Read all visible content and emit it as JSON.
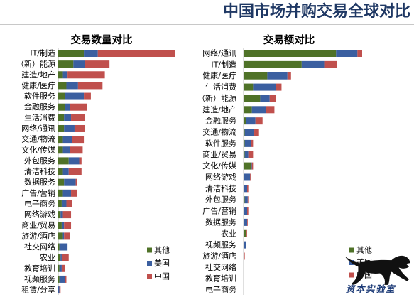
{
  "header": {
    "title": "中国市场并购交易全球对比"
  },
  "chart_data": [
    {
      "type": "bar",
      "orientation": "horizontal",
      "stacked": true,
      "title": "交易数量对比",
      "categories": [
        "IT/制造",
        "（新）能源",
        "建造/地产",
        "健康/医疗",
        "软件服务",
        "金融服务",
        "生活消费",
        "网络/通讯",
        "交通/物流",
        "文化/传媒",
        "外包服务",
        "清洁科技",
        "数据服务",
        "广告/营销",
        "电子商务",
        "网络游戏",
        "商业/贸易",
        "旅游/酒店",
        "社交网络",
        "农业",
        "教育培训",
        "视频服务",
        "租赁/分享"
      ],
      "series": [
        {
          "name": "其他",
          "color": "#4f7228",
          "values": [
            22,
            13,
            4,
            7,
            6,
            6,
            5,
            5,
            4,
            4,
            9,
            4,
            5,
            4,
            3,
            2,
            3,
            4,
            1,
            2,
            1,
            1,
            0
          ]
        },
        {
          "name": "美国",
          "color": "#3b5fa0",
          "values": [
            12,
            10,
            4,
            10,
            16,
            4,
            6,
            9,
            8,
            6,
            9,
            5,
            10,
            7,
            4,
            2,
            2,
            1,
            7,
            1,
            2,
            5,
            1
          ]
        },
        {
          "name": "中国",
          "color": "#c0504d",
          "values": [
            66,
            21,
            32,
            21,
            6,
            15,
            12,
            9,
            10,
            11,
            2,
            11,
            1,
            5,
            5,
            7,
            6,
            5,
            0,
            6,
            3,
            1,
            1
          ]
        }
      ],
      "legend": "bottom-right",
      "grid": false
    },
    {
      "type": "bar",
      "orientation": "horizontal",
      "stacked": true,
      "title": "交易额对比",
      "categories": [
        "网络/通讯",
        "IT/制造",
        "健康/医疗",
        "生活消费",
        "（新）能源",
        "建造/地产",
        "金融服务",
        "交通/物流",
        "软件服务",
        "商业/贸易",
        "文化/传媒",
        "网络游戏",
        "清洁科技",
        "外包服务",
        "广告/营销",
        "数据服务",
        "农业",
        "视频服务",
        "旅游/酒店",
        "社交网络",
        "教育培训",
        "电子商务"
      ],
      "series": [
        {
          "name": "其他",
          "color": "#4f7228",
          "values": [
            78,
            49,
            20,
            8,
            14,
            7,
            2,
            1,
            1,
            1,
            6,
            0.5,
            0.5,
            1,
            0.5,
            0.5,
            2.5,
            0,
            0,
            0,
            0,
            0
          ]
        },
        {
          "name": "美国",
          "color": "#3b5fa0",
          "values": [
            18,
            19,
            17,
            19,
            8,
            12,
            8,
            8,
            5,
            3,
            1,
            5,
            2.5,
            2.5,
            2.5,
            2.5,
            0,
            2,
            0.5,
            0.5,
            0,
            0.5
          ]
        },
        {
          "name": "中国",
          "color": "#c0504d",
          "values": [
            4,
            11,
            3,
            5,
            5,
            7,
            6,
            4,
            2,
            4,
            1,
            1,
            1,
            0.5,
            1,
            0.5,
            0.5,
            0,
            0.5,
            0,
            0.5,
            0
          ]
        }
      ],
      "legend": "bottom-right",
      "grid": false
    }
  ],
  "logo": {
    "text": "资本实验室",
    "icon": "panther-icon"
  }
}
